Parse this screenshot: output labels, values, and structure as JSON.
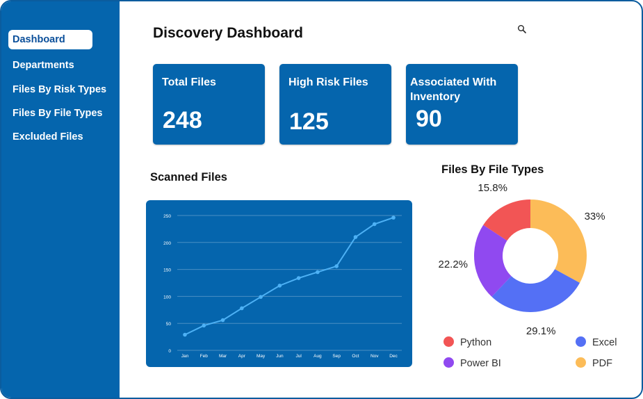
{
  "sidebar": {
    "items": [
      {
        "label": "Dashboard",
        "active": true
      },
      {
        "label": "Departments",
        "active": false
      },
      {
        "label": "Files By Risk Types",
        "active": false
      },
      {
        "label": "Files By File Types",
        "active": false
      },
      {
        "label": "Excluded Files",
        "active": false
      }
    ]
  },
  "header": {
    "title": "Discovery Dashboard",
    "search_icon": "search-icon"
  },
  "cards": [
    {
      "label": "Total Files",
      "value": "248"
    },
    {
      "label": "High Risk Files",
      "value": "125"
    },
    {
      "label": "Associated With Inventory",
      "value": "90"
    }
  ],
  "colors": {
    "brand": "#0565ad",
    "line": "#4db1f5",
    "python": "#f25555",
    "excel": "#5470f5",
    "powerbi": "#9049f0",
    "pdf": "#fcbc58"
  },
  "chart_data": [
    {
      "type": "line",
      "title": "Scanned Files",
      "x": [
        "Jan",
        "Feb",
        "Mar",
        "Apr",
        "May",
        "Jun",
        "Jul",
        "Aug",
        "Sep",
        "Oct",
        "Nov",
        "Dec"
      ],
      "series": [
        {
          "values": [
            29,
            46,
            56,
            78,
            99,
            120,
            134,
            145,
            156,
            210,
            234,
            246
          ]
        }
      ],
      "ylim": [
        0,
        250
      ],
      "yticks": [
        0,
        50,
        100,
        150,
        200,
        250
      ],
      "grid": true
    },
    {
      "type": "pie",
      "donut": true,
      "title": "Files By File Types",
      "labels": [
        "PDF",
        "Excel",
        "Power BI",
        "Python"
      ],
      "values": [
        33,
        29.1,
        22.2,
        15.8
      ],
      "display": [
        "33%",
        "29.1%",
        "22.2%",
        "15.8%"
      ],
      "colors": [
        "#fcbc58",
        "#5470f5",
        "#9049f0",
        "#f25555"
      ],
      "legend": [
        "Python",
        "Excel",
        "Power BI",
        "PDF"
      ],
      "legend_placement": "bottom"
    }
  ]
}
